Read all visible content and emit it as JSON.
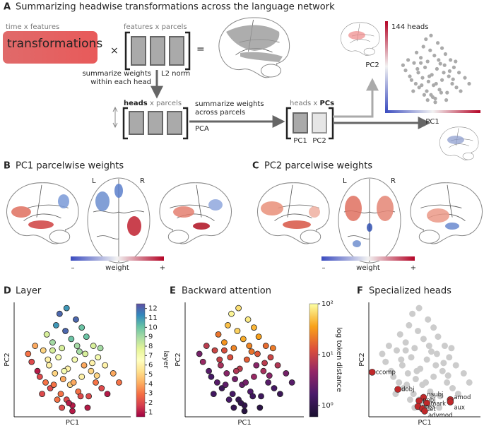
{
  "panel_a": {
    "letter": "A",
    "title": "Summarizing headwise transformations across the language network",
    "transform_dims": "time x features",
    "transform": "transformations",
    "times": "×",
    "features_parcels": "features x parcels",
    "equals": "=",
    "l2_norm": "L2 norm",
    "summarize_head": [
      "summarize weights",
      "within each head"
    ],
    "heads_parcels": [
      "heads",
      " x parcels"
    ],
    "summarize_parcels": [
      "summarize weights",
      "across parcels"
    ],
    "pca": "PCA",
    "heads_pcs": [
      "heads x ",
      "PCs"
    ],
    "pc1_col": "PC1",
    "pc2_col": "PC2",
    "inset": {
      "count": "144 heads",
      "xlabel": "PC1",
      "ylabel": "PC2"
    }
  },
  "panel_b": {
    "letter": "B",
    "title": "PC1 parcelwise weights",
    "left": "L",
    "right": "R",
    "colorbar": [
      "–",
      "weight",
      "+"
    ]
  },
  "panel_c": {
    "letter": "C",
    "title": "PC2 parcelwise weights",
    "left": "L",
    "right": "R",
    "colorbar": [
      "–",
      "weight",
      "+"
    ]
  },
  "heads": {
    "pc1": [
      12,
      15,
      18,
      20,
      22,
      25,
      27,
      28,
      30,
      31,
      33,
      35,
      36,
      38,
      40,
      41,
      42,
      44,
      45,
      46,
      48,
      49,
      50,
      52,
      53,
      55,
      56,
      58,
      60,
      62,
      64,
      66,
      68,
      70,
      72,
      75,
      78,
      80,
      85,
      90,
      24,
      29,
      34,
      39,
      43,
      47,
      51,
      54,
      57,
      61,
      63,
      67,
      71,
      74,
      37,
      45,
      50,
      58,
      33,
      41
    ],
    "pc2": [
      55,
      48,
      62,
      40,
      35,
      58,
      30,
      72,
      45,
      25,
      65,
      38,
      80,
      52,
      20,
      60,
      33,
      75,
      15,
      42,
      28,
      68,
      10,
      50,
      85,
      22,
      57,
      35,
      45,
      70,
      18,
      40,
      62,
      30,
      52,
      25,
      45,
      20,
      38,
      30,
      20,
      50,
      28,
      90,
      40,
      12,
      30,
      62,
      18,
      55,
      8,
      47,
      36,
      60,
      15,
      95,
      5,
      78,
      58,
      8
    ],
    "layer": [
      3,
      2,
      4,
      1,
      2,
      5,
      3,
      8,
      6,
      2,
      9,
      5,
      11,
      7,
      3,
      8,
      4,
      12,
      2,
      6,
      5,
      10,
      1,
      7,
      12,
      3,
      9,
      6,
      4,
      10,
      2,
      5,
      8,
      3,
      7,
      2,
      6,
      1,
      4,
      3,
      2,
      6,
      3,
      12,
      7,
      1,
      4,
      9,
      2,
      8,
      1,
      6,
      5,
      9,
      3,
      11,
      1,
      10,
      8,
      2
    ],
    "token_distance": [
      3,
      5,
      8,
      2,
      1.5,
      10,
      2,
      20,
      6,
      1.2,
      30,
      4,
      50,
      12,
      1.5,
      25,
      3,
      60,
      1.1,
      8,
      2.5,
      40,
      1,
      15,
      80,
      1.8,
      20,
      5,
      4,
      35,
      1.3,
      6,
      18,
      2,
      10,
      1.5,
      7,
      1.2,
      3,
      2,
      1.4,
      9,
      2.2,
      90,
      7,
      1,
      3,
      25,
      1.3,
      14,
      0.9,
      8,
      4,
      22,
      1.6,
      70,
      0.8,
      45,
      12,
      1.1
    ]
  },
  "panel_d": {
    "letter": "D",
    "title": "Layer",
    "type": "scatter",
    "xlabel": "PC1",
    "ylabel": "PC2",
    "xlim": [
      0,
      100
    ],
    "ylim": [
      0,
      100
    ],
    "color_by": "layer",
    "colorbar": {
      "label": "layer",
      "scale": "linear",
      "clim": [
        0.5,
        12.5
      ],
      "ticks": [
        1,
        2,
        3,
        4,
        5,
        6,
        7,
        8,
        9,
        10,
        11,
        12
      ],
      "colors": [
        "#9e0142",
        "#d53e4f",
        "#f46d43",
        "#fdae61",
        "#fee08b",
        "#ffffbf",
        "#e6f598",
        "#abdda4",
        "#66c2a5",
        "#3288bd",
        "#5e4fa2"
      ]
    }
  },
  "panel_e": {
    "letter": "E",
    "title": "Backward attention",
    "type": "scatter",
    "xlabel": "PC1",
    "ylabel": "PC2",
    "xlim": [
      0,
      100
    ],
    "ylim": [
      0,
      100
    ],
    "color_by": "token_distance",
    "colorbar": {
      "label": "log token distance",
      "scale": "log",
      "clim": [
        0.6,
        100
      ],
      "ticks": [
        {
          "value": 1,
          "label": "10⁰"
        },
        {
          "value": 10,
          "label": "10¹"
        },
        {
          "value": 100,
          "label": "10²"
        }
      ],
      "colors": [
        "#1a1030",
        "#4a1a6a",
        "#932667",
        "#dd513a",
        "#f9a21a",
        "#fcffa4"
      ]
    }
  },
  "panel_f": {
    "letter": "F",
    "title": "Specialized heads",
    "type": "scatter",
    "xlabel": "PC1",
    "ylabel": "PC2",
    "xlim": [
      0,
      100
    ],
    "ylim": [
      0,
      100
    ],
    "color": "#cccccc",
    "highlight_color": "#c0282a",
    "specialized": [
      {
        "name": "ccomp",
        "pc1": 3,
        "pc2": 39
      },
      {
        "name": "dobj",
        "pc1": 26,
        "pc2": 24
      },
      {
        "name": "nsubj",
        "pc1": 49,
        "pc2": 17
      },
      {
        "name": "pobj",
        "pc1": 45,
        "pc2": 14
      },
      {
        "name": "mark",
        "pc1": 52,
        "pc2": 12
      },
      {
        "name": "poss",
        "pc1": 44,
        "pc2": 9
      },
      {
        "name": "det",
        "pc1": 48,
        "pc2": 7
      },
      {
        "name": "advmod",
        "pc1": 50,
        "pc2": 5
      },
      {
        "name": "amod",
        "pc1": 73,
        "pc2": 15
      },
      {
        "name": "aux",
        "pc1": 73,
        "pc2": 13
      }
    ]
  }
}
